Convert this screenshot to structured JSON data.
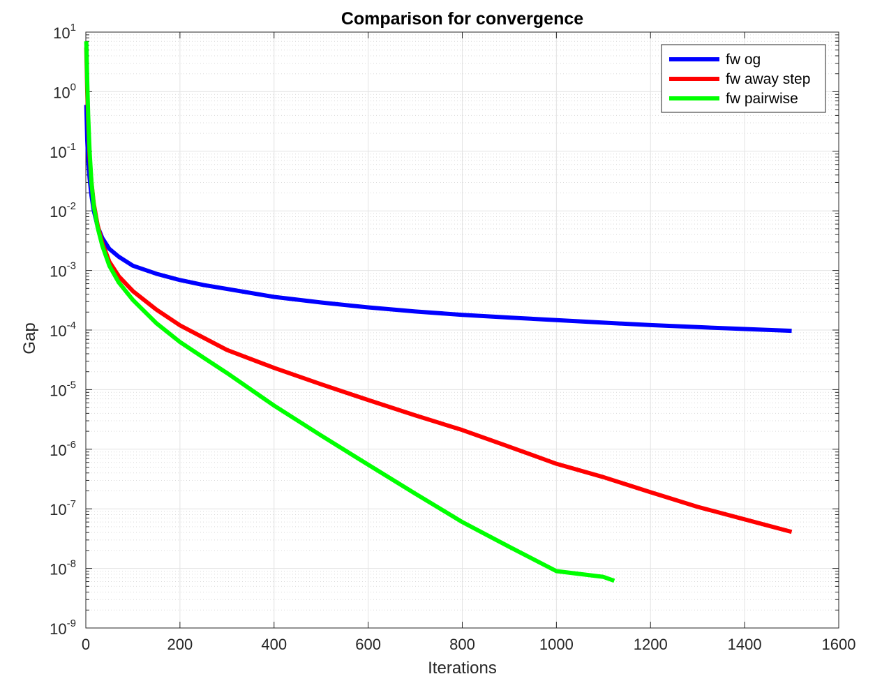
{
  "chart_data": {
    "type": "line",
    "title": "Comparison for convergence",
    "xlabel": "Iterations",
    "ylabel": "Gap",
    "xlim": [
      0,
      1600
    ],
    "ylim": [
      1e-09,
      10
    ],
    "yscale": "log",
    "grid": true,
    "minor_grid": true,
    "legend_position": "top-right",
    "x_ticks": [
      "0",
      "200",
      "400",
      "600",
      "800",
      "1000",
      "1200",
      "1400",
      "1600"
    ],
    "y_ticks": [
      {
        "base": "10",
        "exp": "1"
      },
      {
        "base": "10",
        "exp": "0"
      },
      {
        "base": "10",
        "exp": "-1"
      },
      {
        "base": "10",
        "exp": "-2"
      },
      {
        "base": "10",
        "exp": "-3"
      },
      {
        "base": "10",
        "exp": "-4"
      },
      {
        "base": "10",
        "exp": "-5"
      },
      {
        "base": "10",
        "exp": "-6"
      },
      {
        "base": "10",
        "exp": "-7"
      },
      {
        "base": "10",
        "exp": "-8"
      },
      {
        "base": "10",
        "exp": "-9"
      }
    ],
    "series": [
      {
        "name": "fw og",
        "color": "#0000ff",
        "x": [
          1,
          3,
          5,
          8,
          12,
          17,
          25,
          35,
          50,
          70,
          100,
          150,
          200,
          250,
          300,
          400,
          500,
          600,
          700,
          800,
          900,
          1000,
          1100,
          1200,
          1300,
          1400,
          1500
        ],
        "y": [
          0.6,
          0.15,
          0.07,
          0.035,
          0.018,
          0.01,
          0.0055,
          0.0035,
          0.0023,
          0.0017,
          0.0012,
          0.00088,
          0.00069,
          0.00057,
          0.00049,
          0.00036,
          0.00029,
          0.00024,
          0.000205,
          0.00018,
          0.000162,
          0.000147,
          0.000133,
          0.000121,
          0.000112,
          0.000104,
          9.7e-05
        ]
      },
      {
        "name": "fw away step",
        "color": "#ff0000",
        "x": [
          1,
          3,
          5,
          8,
          12,
          17,
          25,
          35,
          50,
          70,
          100,
          150,
          200,
          250,
          300,
          400,
          500,
          600,
          700,
          800,
          900,
          1000,
          1100,
          1200,
          1300,
          1400,
          1500
        ],
        "y": [
          5.5,
          1.0,
          0.3,
          0.08,
          0.03,
          0.013,
          0.0058,
          0.0029,
          0.0014,
          0.0008,
          0.00045,
          0.00022,
          0.00012,
          7.45e-05,
          4.63e-05,
          2.32e-05,
          1.23e-05,
          6.7e-06,
          3.7e-06,
          2.1e-06,
          1.1e-06,
          5.7e-07,
          3.4e-07,
          1.9e-07,
          1.08e-07,
          6.65e-08,
          4.1e-08
        ]
      },
      {
        "name": "fw pairwise",
        "color": "#00ff00",
        "x": [
          1,
          3,
          5,
          8,
          12,
          17,
          25,
          35,
          50,
          70,
          100,
          150,
          200,
          250,
          300,
          400,
          500,
          600,
          700,
          800,
          900,
          1000,
          1100,
          1123
        ],
        "y": [
          7.0,
          1.5,
          0.4,
          0.1,
          0.03,
          0.012,
          0.0053,
          0.0026,
          0.0012,
          0.00063,
          0.00032,
          0.00013,
          6.3e-05,
          3.45e-05,
          1.9e-05,
          5.4e-06,
          1.7e-06,
          5.5e-07,
          1.8e-07,
          6e-08,
          2.3e-08,
          9e-09,
          7.2e-09,
          6.2e-09
        ]
      }
    ]
  }
}
